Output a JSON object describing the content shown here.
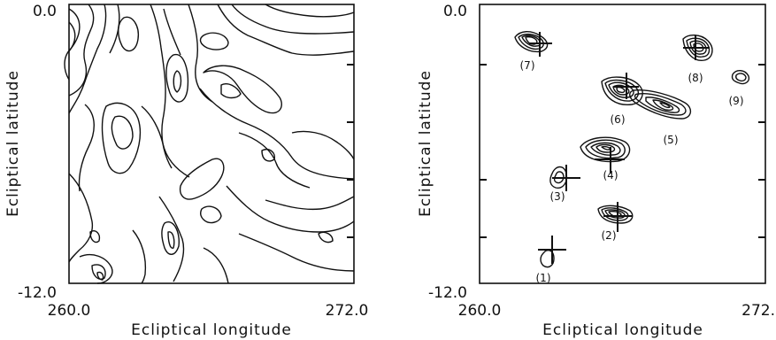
{
  "left_panel": {
    "x_tick_min": "260.0",
    "x_tick_max": "272.0",
    "y_tick_max": "0.0",
    "y_tick_min": "-12.0",
    "xlabel": "Ecliptical longitude",
    "ylabel": "Ecliptical latitude"
  },
  "right_panel": {
    "x_tick_min": "260.0",
    "x_tick_max": "272.",
    "y_tick_max": "0.0",
    "y_tick_min": "-12.0",
    "xlabel": "Ecliptical longitude",
    "ylabel": "Ecliptical latitude",
    "sources": [
      "(1)",
      "(2)",
      "(3)",
      "(4)",
      "(5)",
      "(6)",
      "(7)",
      "(8)",
      "(9)"
    ]
  }
}
